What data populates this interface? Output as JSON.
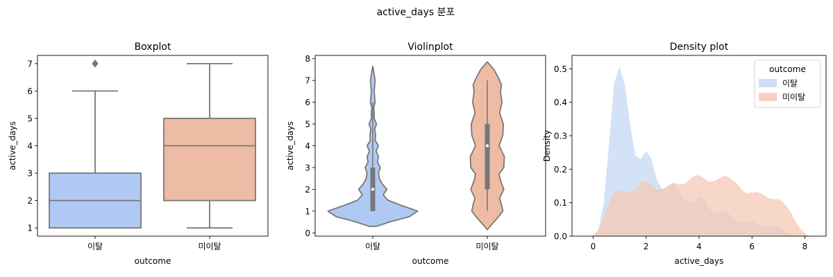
{
  "suptitle": "active_days 분포",
  "colors": {
    "churn": "#b0c9f4",
    "stay": "#eebca4",
    "churn_kde": "#c6d8f6",
    "stay_kde": "#f4c9b4",
    "line": "#777777"
  },
  "chart_data": [
    {
      "type": "boxplot",
      "title": "Boxplot",
      "xlabel": "outcome",
      "ylabel": "active_days",
      "categories": [
        "이탈",
        "미이탈"
      ],
      "ylim": [
        0.7,
        7.3
      ],
      "yticks": [
        "1",
        "2",
        "3",
        "4",
        "5",
        "6",
        "7"
      ],
      "boxes": [
        {
          "name": "이탈",
          "q1": 1,
          "median": 2,
          "q3": 3,
          "whisker_low": 1,
          "whisker_high": 6,
          "outliers": [
            7
          ]
        },
        {
          "name": "미이탈",
          "q1": 2,
          "median": 4,
          "q3": 5,
          "whisker_low": 1,
          "whisker_high": 7,
          "outliers": []
        }
      ]
    },
    {
      "type": "violin",
      "title": "Violinplot",
      "xlabel": "outcome",
      "ylabel": "active_days",
      "categories": [
        "이탈",
        "미이탈"
      ],
      "ylim": [
        -0.15,
        8.15
      ],
      "yticks": [
        "0",
        "1",
        "2",
        "3",
        "4",
        "5",
        "6",
        "7",
        "8"
      ],
      "violins": [
        {
          "name": "이탈",
          "q1": 1,
          "median": 2,
          "q3": 3,
          "whisker_low": 1,
          "whisker_high": 6,
          "density": [
            [
              0.3,
              0.08
            ],
            [
              0.5,
              0.35
            ],
            [
              0.75,
              0.78
            ],
            [
              1.0,
              0.95
            ],
            [
              1.25,
              0.62
            ],
            [
              1.5,
              0.32
            ],
            [
              1.75,
              0.22
            ],
            [
              2.0,
              0.3
            ],
            [
              2.25,
              0.2
            ],
            [
              2.5,
              0.14
            ],
            [
              2.75,
              0.12
            ],
            [
              3.0,
              0.16
            ],
            [
              3.25,
              0.1
            ],
            [
              3.5,
              0.12
            ],
            [
              3.75,
              0.07
            ],
            [
              4.0,
              0.12
            ],
            [
              4.25,
              0.05
            ],
            [
              4.5,
              0.06
            ],
            [
              4.75,
              0.04
            ],
            [
              5.0,
              0.08
            ],
            [
              5.25,
              0.03
            ],
            [
              5.5,
              0.03
            ],
            [
              5.75,
              0.02
            ],
            [
              6.0,
              0.05
            ],
            [
              6.5,
              0.03
            ],
            [
              7.0,
              0.05
            ],
            [
              7.4,
              0.02
            ],
            [
              7.65,
              0.0
            ]
          ]
        },
        {
          "name": "미이탈",
          "q1": 2,
          "median": 4,
          "q3": 5,
          "whisker_low": 1,
          "whisker_high": 7,
          "density": [
            [
              0.15,
              0.0
            ],
            [
              0.4,
              0.1
            ],
            [
              0.7,
              0.22
            ],
            [
              1.0,
              0.33
            ],
            [
              1.3,
              0.3
            ],
            [
              1.6,
              0.26
            ],
            [
              2.0,
              0.35
            ],
            [
              2.4,
              0.28
            ],
            [
              2.7,
              0.25
            ],
            [
              3.0,
              0.35
            ],
            [
              3.5,
              0.36
            ],
            [
              4.0,
              0.25
            ],
            [
              4.5,
              0.33
            ],
            [
              5.0,
              0.34
            ],
            [
              5.5,
              0.26
            ],
            [
              6.0,
              0.31
            ],
            [
              6.5,
              0.28
            ],
            [
              6.8,
              0.3
            ],
            [
              7.1,
              0.24
            ],
            [
              7.5,
              0.14
            ],
            [
              7.85,
              0.0
            ]
          ]
        }
      ]
    },
    {
      "type": "area",
      "title": "Density plot",
      "xlabel": "active_days",
      "ylabel": "Density",
      "xlim": [
        -0.8,
        8.8
      ],
      "ylim": [
        0,
        0.54
      ],
      "xticks": [
        "0",
        "2",
        "4",
        "6",
        "8"
      ],
      "yticks": [
        "0.0",
        "0.1",
        "0.2",
        "0.3",
        "0.4",
        "0.5"
      ],
      "legend": {
        "title": "outcome",
        "placement": "top-right"
      },
      "series": [
        {
          "name": "이탈",
          "points": [
            [
              0,
              0.0
            ],
            [
              0.2,
              0.02
            ],
            [
              0.4,
              0.1
            ],
            [
              0.6,
              0.28
            ],
            [
              0.8,
              0.46
            ],
            [
              1.0,
              0.505
            ],
            [
              1.2,
              0.45
            ],
            [
              1.4,
              0.33
            ],
            [
              1.6,
              0.24
            ],
            [
              1.8,
              0.23
            ],
            [
              2.0,
              0.255
            ],
            [
              2.2,
              0.23
            ],
            [
              2.4,
              0.17
            ],
            [
              2.6,
              0.14
            ],
            [
              2.8,
              0.14
            ],
            [
              3.0,
              0.16
            ],
            [
              3.2,
              0.14
            ],
            [
              3.4,
              0.11
            ],
            [
              3.6,
              0.1
            ],
            [
              3.8,
              0.1
            ],
            [
              4.0,
              0.12
            ],
            [
              4.2,
              0.11
            ],
            [
              4.4,
              0.08
            ],
            [
              4.6,
              0.07
            ],
            [
              4.8,
              0.07
            ],
            [
              5.0,
              0.08
            ],
            [
              5.2,
              0.06
            ],
            [
              5.4,
              0.045
            ],
            [
              5.6,
              0.04
            ],
            [
              5.8,
              0.04
            ],
            [
              6.0,
              0.045
            ],
            [
              6.2,
              0.035
            ],
            [
              6.4,
              0.03
            ],
            [
              6.6,
              0.03
            ],
            [
              6.8,
              0.03
            ],
            [
              7.0,
              0.03
            ],
            [
              7.2,
              0.02
            ],
            [
              7.5,
              0.005
            ],
            [
              7.8,
              0.0
            ]
          ]
        },
        {
          "name": "미이탈",
          "points": [
            [
              0,
              0.0
            ],
            [
              0.2,
              0.02
            ],
            [
              0.4,
              0.055
            ],
            [
              0.6,
              0.1
            ],
            [
              0.8,
              0.13
            ],
            [
              1.0,
              0.14
            ],
            [
              1.2,
              0.135
            ],
            [
              1.4,
              0.13
            ],
            [
              1.6,
              0.14
            ],
            [
              1.8,
              0.16
            ],
            [
              2.0,
              0.165
            ],
            [
              2.2,
              0.155
            ],
            [
              2.4,
              0.14
            ],
            [
              2.6,
              0.14
            ],
            [
              2.8,
              0.15
            ],
            [
              3.0,
              0.16
            ],
            [
              3.2,
              0.155
            ],
            [
              3.4,
              0.155
            ],
            [
              3.6,
              0.165
            ],
            [
              3.8,
              0.18
            ],
            [
              4.0,
              0.182
            ],
            [
              4.2,
              0.172
            ],
            [
              4.4,
              0.162
            ],
            [
              4.6,
              0.165
            ],
            [
              4.8,
              0.175
            ],
            [
              5.0,
              0.18
            ],
            [
              5.2,
              0.172
            ],
            [
              5.4,
              0.16
            ],
            [
              5.6,
              0.14
            ],
            [
              5.8,
              0.128
            ],
            [
              6.0,
              0.13
            ],
            [
              6.2,
              0.132
            ],
            [
              6.4,
              0.125
            ],
            [
              6.6,
              0.115
            ],
            [
              6.8,
              0.11
            ],
            [
              7.0,
              0.11
            ],
            [
              7.2,
              0.1
            ],
            [
              7.4,
              0.08
            ],
            [
              7.6,
              0.05
            ],
            [
              7.8,
              0.025
            ],
            [
              8.0,
              0.008
            ],
            [
              8.2,
              0.0
            ]
          ]
        }
      ]
    }
  ]
}
